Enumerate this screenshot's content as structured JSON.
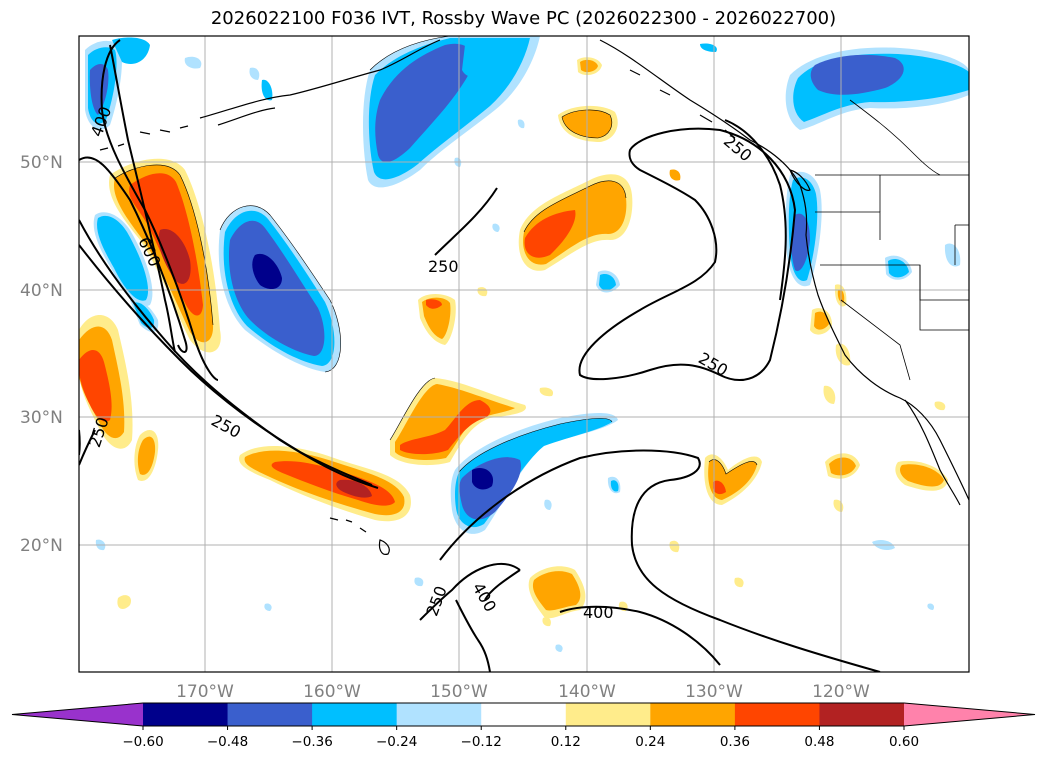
{
  "title": "2026022100 F036 IVT, Rossby Wave PC (2026022300 - 2026022700)",
  "map": {
    "lat_labels": [
      "50°N",
      "40°N",
      "30°N",
      "20°N"
    ],
    "lon_labels": [
      "170°W",
      "160°W",
      "150°W",
      "140°W",
      "130°W",
      "120°W"
    ],
    "contour_labels": [
      "400",
      "600",
      "250",
      "250",
      "250",
      "250",
      "250",
      "400",
      "400",
      "250"
    ]
  },
  "colorbar": {
    "ticks": [
      "−0.60",
      "−0.48",
      "−0.36",
      "−0.24",
      "−0.12",
      "0.12",
      "0.24",
      "0.36",
      "0.48",
      "0.60"
    ],
    "colors": [
      "#9932cc",
      "#00008b",
      "#3a5fcd",
      "#00bfff",
      "#b0e2ff",
      "#ffffff",
      "#ffec8b",
      "#ffa500",
      "#ff4500",
      "#b22222",
      "#ff82ab"
    ]
  }
}
